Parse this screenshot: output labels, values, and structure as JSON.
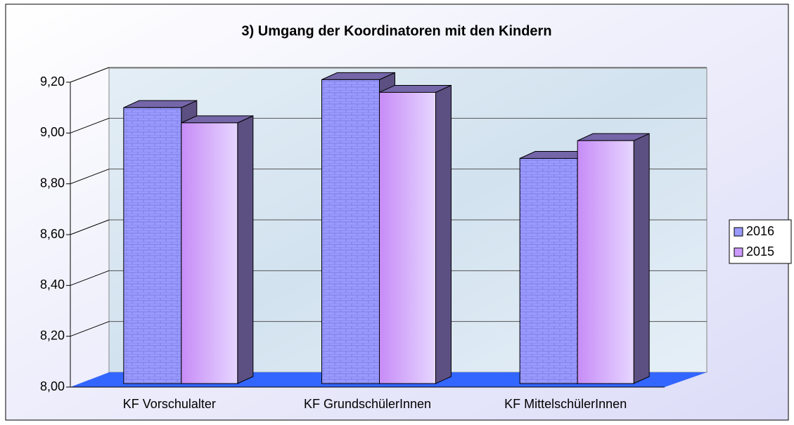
{
  "chart_data": {
    "type": "bar3d",
    "title": "3) Umgang der Koordinatoren mit den Kindern",
    "categories": [
      "KF Vorschulalter",
      "KF GrundschülerInnen",
      "KF MittelschülerInnen"
    ],
    "series": [
      {
        "name": "2016",
        "color": "#9999ff",
        "values": [
          9.1,
          9.21,
          8.9
        ]
      },
      {
        "name": "2015",
        "color": "#cc99ff",
        "values": [
          9.04,
          9.16,
          8.97
        ]
      }
    ],
    "ylim": [
      8.0,
      9.2
    ],
    "yticks": [
      {
        "value": 8.0,
        "label": "8,00"
      },
      {
        "value": 8.2,
        "label": "8,20"
      },
      {
        "value": 8.4,
        "label": "8,40"
      },
      {
        "value": 8.6,
        "label": "8,60"
      },
      {
        "value": 8.8,
        "label": "8,80"
      },
      {
        "value": 9.0,
        "label": "9,00"
      },
      {
        "value": 9.2,
        "label": "9,20"
      }
    ],
    "grid": true,
    "legend": "right"
  }
}
